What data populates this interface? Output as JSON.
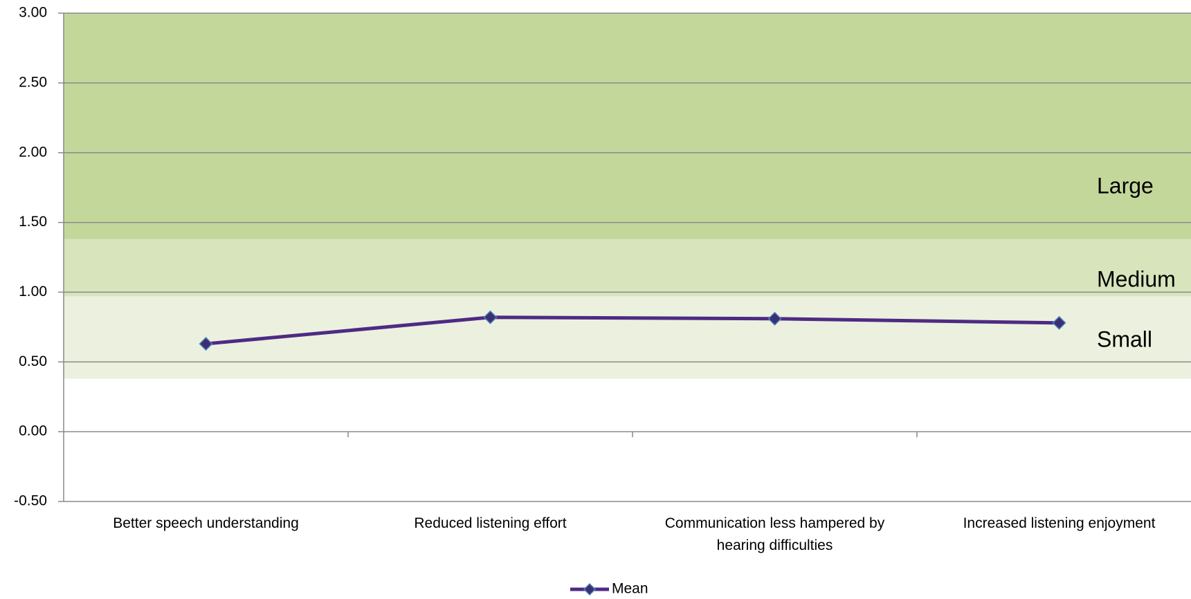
{
  "chart_data": {
    "type": "line",
    "categories": [
      "Better speech understanding",
      "Reduced listening effort",
      "Communication less hampered by hearing difficulties",
      "Increased listening enjoyment"
    ],
    "series": [
      {
        "name": "Mean",
        "color": "#4e2a84",
        "marker_color": "#3b2f73",
        "marker_edge": "#4f81bd",
        "values": [
          0.63,
          0.82,
          0.81,
          0.78
        ]
      }
    ],
    "bands": [
      {
        "label": "Large",
        "from": 1.38,
        "to": 3.0,
        "color": "#c4d79b"
      },
      {
        "label": "Medium",
        "from": 0.97,
        "to": 1.38,
        "color": "#d8e4bc"
      },
      {
        "label": "Small",
        "from": 0.38,
        "to": 0.97,
        "color": "#ebf1de"
      }
    ],
    "ylim": [
      -0.5,
      3.0
    ],
    "yticks": [
      {
        "value": -0.5,
        "label": "-0.50"
      },
      {
        "value": 0,
        "label": "0.00"
      },
      {
        "value": 0.5,
        "label": "0.50"
      },
      {
        "value": 1.0,
        "label": "1.00"
      },
      {
        "value": 1.5,
        "label": "1.50"
      },
      {
        "value": 2.0,
        "label": "2.00"
      },
      {
        "value": 2.5,
        "label": "2.50"
      },
      {
        "value": 3.0,
        "label": "3.00"
      }
    ],
    "grid": true,
    "legend": "bottom"
  }
}
